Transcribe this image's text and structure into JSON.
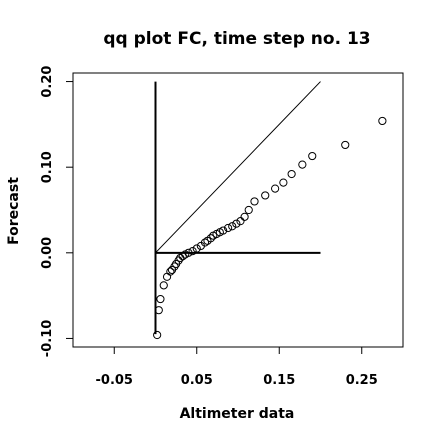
{
  "chart_data": {
    "type": "scatter",
    "title": "qq plot FC, time step no. 13",
    "xlabel": "Altimeter data",
    "ylabel": "Forecast",
    "xlim": [
      -0.1,
      0.3
    ],
    "ylim": [
      -0.11,
      0.21
    ],
    "x_ticks": [
      {
        "value": -0.05,
        "label": "-0.05"
      },
      {
        "value": 0.05,
        "label": "0.05"
      },
      {
        "value": 0.15,
        "label": "0.15"
      },
      {
        "value": 0.25,
        "label": "0.25"
      }
    ],
    "y_ticks": [
      {
        "value": -0.1,
        "label": "-0.10"
      },
      {
        "value": 0.0,
        "label": "0.00"
      },
      {
        "value": 0.1,
        "label": "0.10"
      },
      {
        "value": 0.2,
        "label": "0.20"
      }
    ],
    "grid": false,
    "reference_lines": [
      {
        "name": "identity-line",
        "x": [
          0.0,
          0.2
        ],
        "y": [
          0.0,
          0.2
        ]
      },
      {
        "name": "vertical-axis-line",
        "x": [
          0.0,
          0.0
        ],
        "y": [
          -0.095,
          0.2
        ]
      },
      {
        "name": "horizontal-axis-line",
        "x": [
          0.0,
          0.2
        ],
        "y": [
          0.0,
          0.0
        ]
      }
    ],
    "series": [
      {
        "points": [
          [
            0.002,
            -0.096
          ],
          [
            0.004,
            -0.067
          ],
          [
            0.006,
            -0.054
          ],
          [
            0.01,
            -0.038
          ],
          [
            0.014,
            -0.028
          ],
          [
            0.018,
            -0.022
          ],
          [
            0.02,
            -0.02
          ],
          [
            0.023,
            -0.016
          ],
          [
            0.025,
            -0.013
          ],
          [
            0.028,
            -0.009
          ],
          [
            0.03,
            -0.006
          ],
          [
            0.033,
            -0.004
          ],
          [
            0.036,
            -0.002
          ],
          [
            0.04,
            0.0
          ],
          [
            0.045,
            0.002
          ],
          [
            0.05,
            0.005
          ],
          [
            0.055,
            0.008
          ],
          [
            0.06,
            0.012
          ],
          [
            0.063,
            0.014
          ],
          [
            0.067,
            0.017
          ],
          [
            0.07,
            0.02
          ],
          [
            0.074,
            0.022
          ],
          [
            0.078,
            0.024
          ],
          [
            0.082,
            0.026
          ],
          [
            0.088,
            0.029
          ],
          [
            0.093,
            0.031
          ],
          [
            0.098,
            0.034
          ],
          [
            0.103,
            0.037
          ],
          [
            0.108,
            0.042
          ],
          [
            0.113,
            0.05
          ],
          [
            0.12,
            0.06
          ],
          [
            0.133,
            0.067
          ],
          [
            0.145,
            0.075
          ],
          [
            0.155,
            0.082
          ],
          [
            0.165,
            0.092
          ],
          [
            0.178,
            0.103
          ],
          [
            0.19,
            0.113
          ],
          [
            0.23,
            0.126
          ],
          [
            0.275,
            0.154
          ]
        ]
      }
    ]
  }
}
